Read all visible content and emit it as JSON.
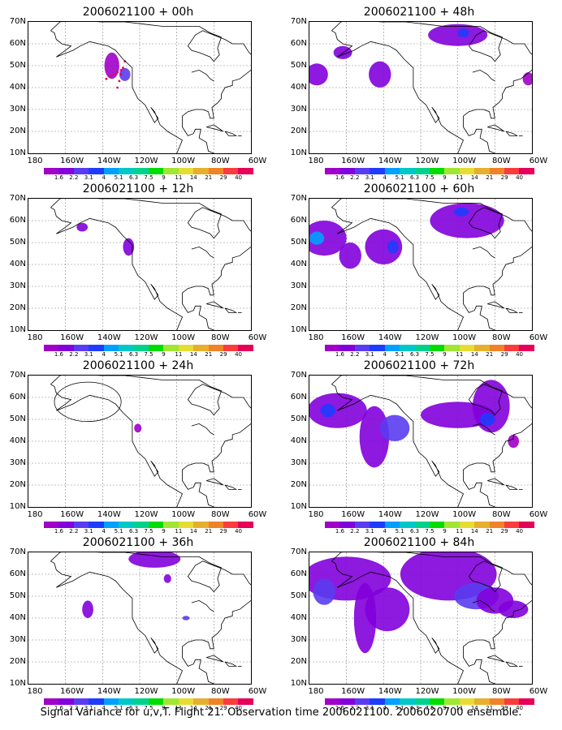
{
  "caption": "Signal Variance for u,v,T. Flight 21. Observation time 2006021100. 2006020700 ensemble.",
  "y_labels": [
    "70N",
    "60N",
    "50N",
    "40N",
    "30N",
    "20N",
    "10N"
  ],
  "x_labels": [
    "180",
    "160W",
    "140W",
    "120W",
    "100W",
    "80W",
    "60W"
  ],
  "colorbar": {
    "labels": [
      "1.6",
      "2.2",
      "3.1",
      "4",
      "5.1",
      "6.3",
      "7.5",
      "9",
      "11",
      "14",
      "21",
      "29",
      "40"
    ],
    "colors": [
      "#a000c8",
      "#8200dc",
      "#5a3cf0",
      "#1e3cff",
      "#00a0ff",
      "#00c8c8",
      "#00d28c",
      "#00dc00",
      "#a0e632",
      "#e6dc32",
      "#e6af2d",
      "#f08228",
      "#fa3c3c",
      "#e6005a"
    ]
  },
  "panels": [
    {
      "title": "2006021100 + 00h"
    },
    {
      "title": "2006021100 + 48h"
    },
    {
      "title": "2006021100 + 12h"
    },
    {
      "title": "2006021100 + 60h"
    },
    {
      "title": "2006021100 + 24h"
    },
    {
      "title": "2006021100 + 72h"
    },
    {
      "title": "2006021100 + 36h"
    },
    {
      "title": "2006021100 + 84h"
    }
  ]
}
